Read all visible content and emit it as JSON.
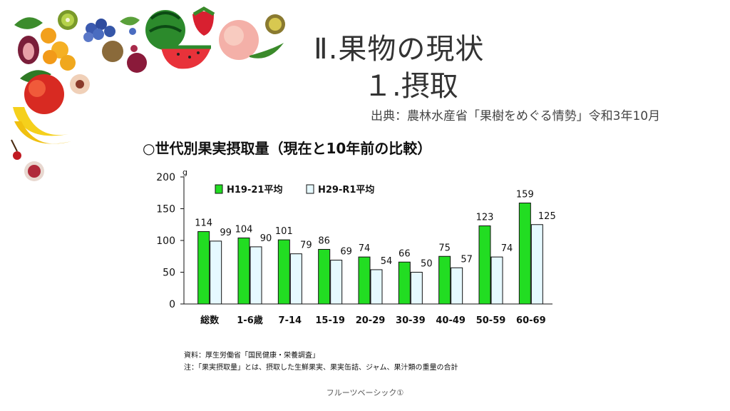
{
  "header": {
    "title_line1": "Ⅱ.果物の現状",
    "title_line2": "１.摂取",
    "source": "出典：農林水産省「果樹をめぐる情勢」令和3年10月"
  },
  "chart_title": "○世代別果実摂取量（現在と10年前の比較）",
  "notes": {
    "line1": "資料：厚生労働省「国民健康・栄養調査」",
    "line2": "注：「果実摂取量」とは、摂取した生鮮果実、果実缶詰、ジャム、果汁類の重量の合計"
  },
  "footer": {
    "text": "フルーツベーシック①"
  },
  "colors": {
    "series1": "#22dd22",
    "series2": "#e6f9ff",
    "stroke": "#111111"
  },
  "chart_data": {
    "type": "bar",
    "categories": [
      "総数",
      "1-6歳",
      "7-14",
      "15-19",
      "20-29",
      "30-39",
      "40-49",
      "50-59",
      "60-69"
    ],
    "series": [
      {
        "name": "H19-21平均",
        "values": [
          114,
          104,
          101,
          86,
          74,
          66,
          75,
          123,
          159
        ]
      },
      {
        "name": "H29-R1平均",
        "values": [
          99,
          90,
          79,
          69,
          54,
          50,
          57,
          74,
          125
        ]
      }
    ],
    "ylabel": "g",
    "ylim": [
      0,
      200
    ],
    "yticks": [
      0,
      50,
      100,
      150,
      200
    ],
    "grid": false,
    "legend_position": "top-left"
  }
}
